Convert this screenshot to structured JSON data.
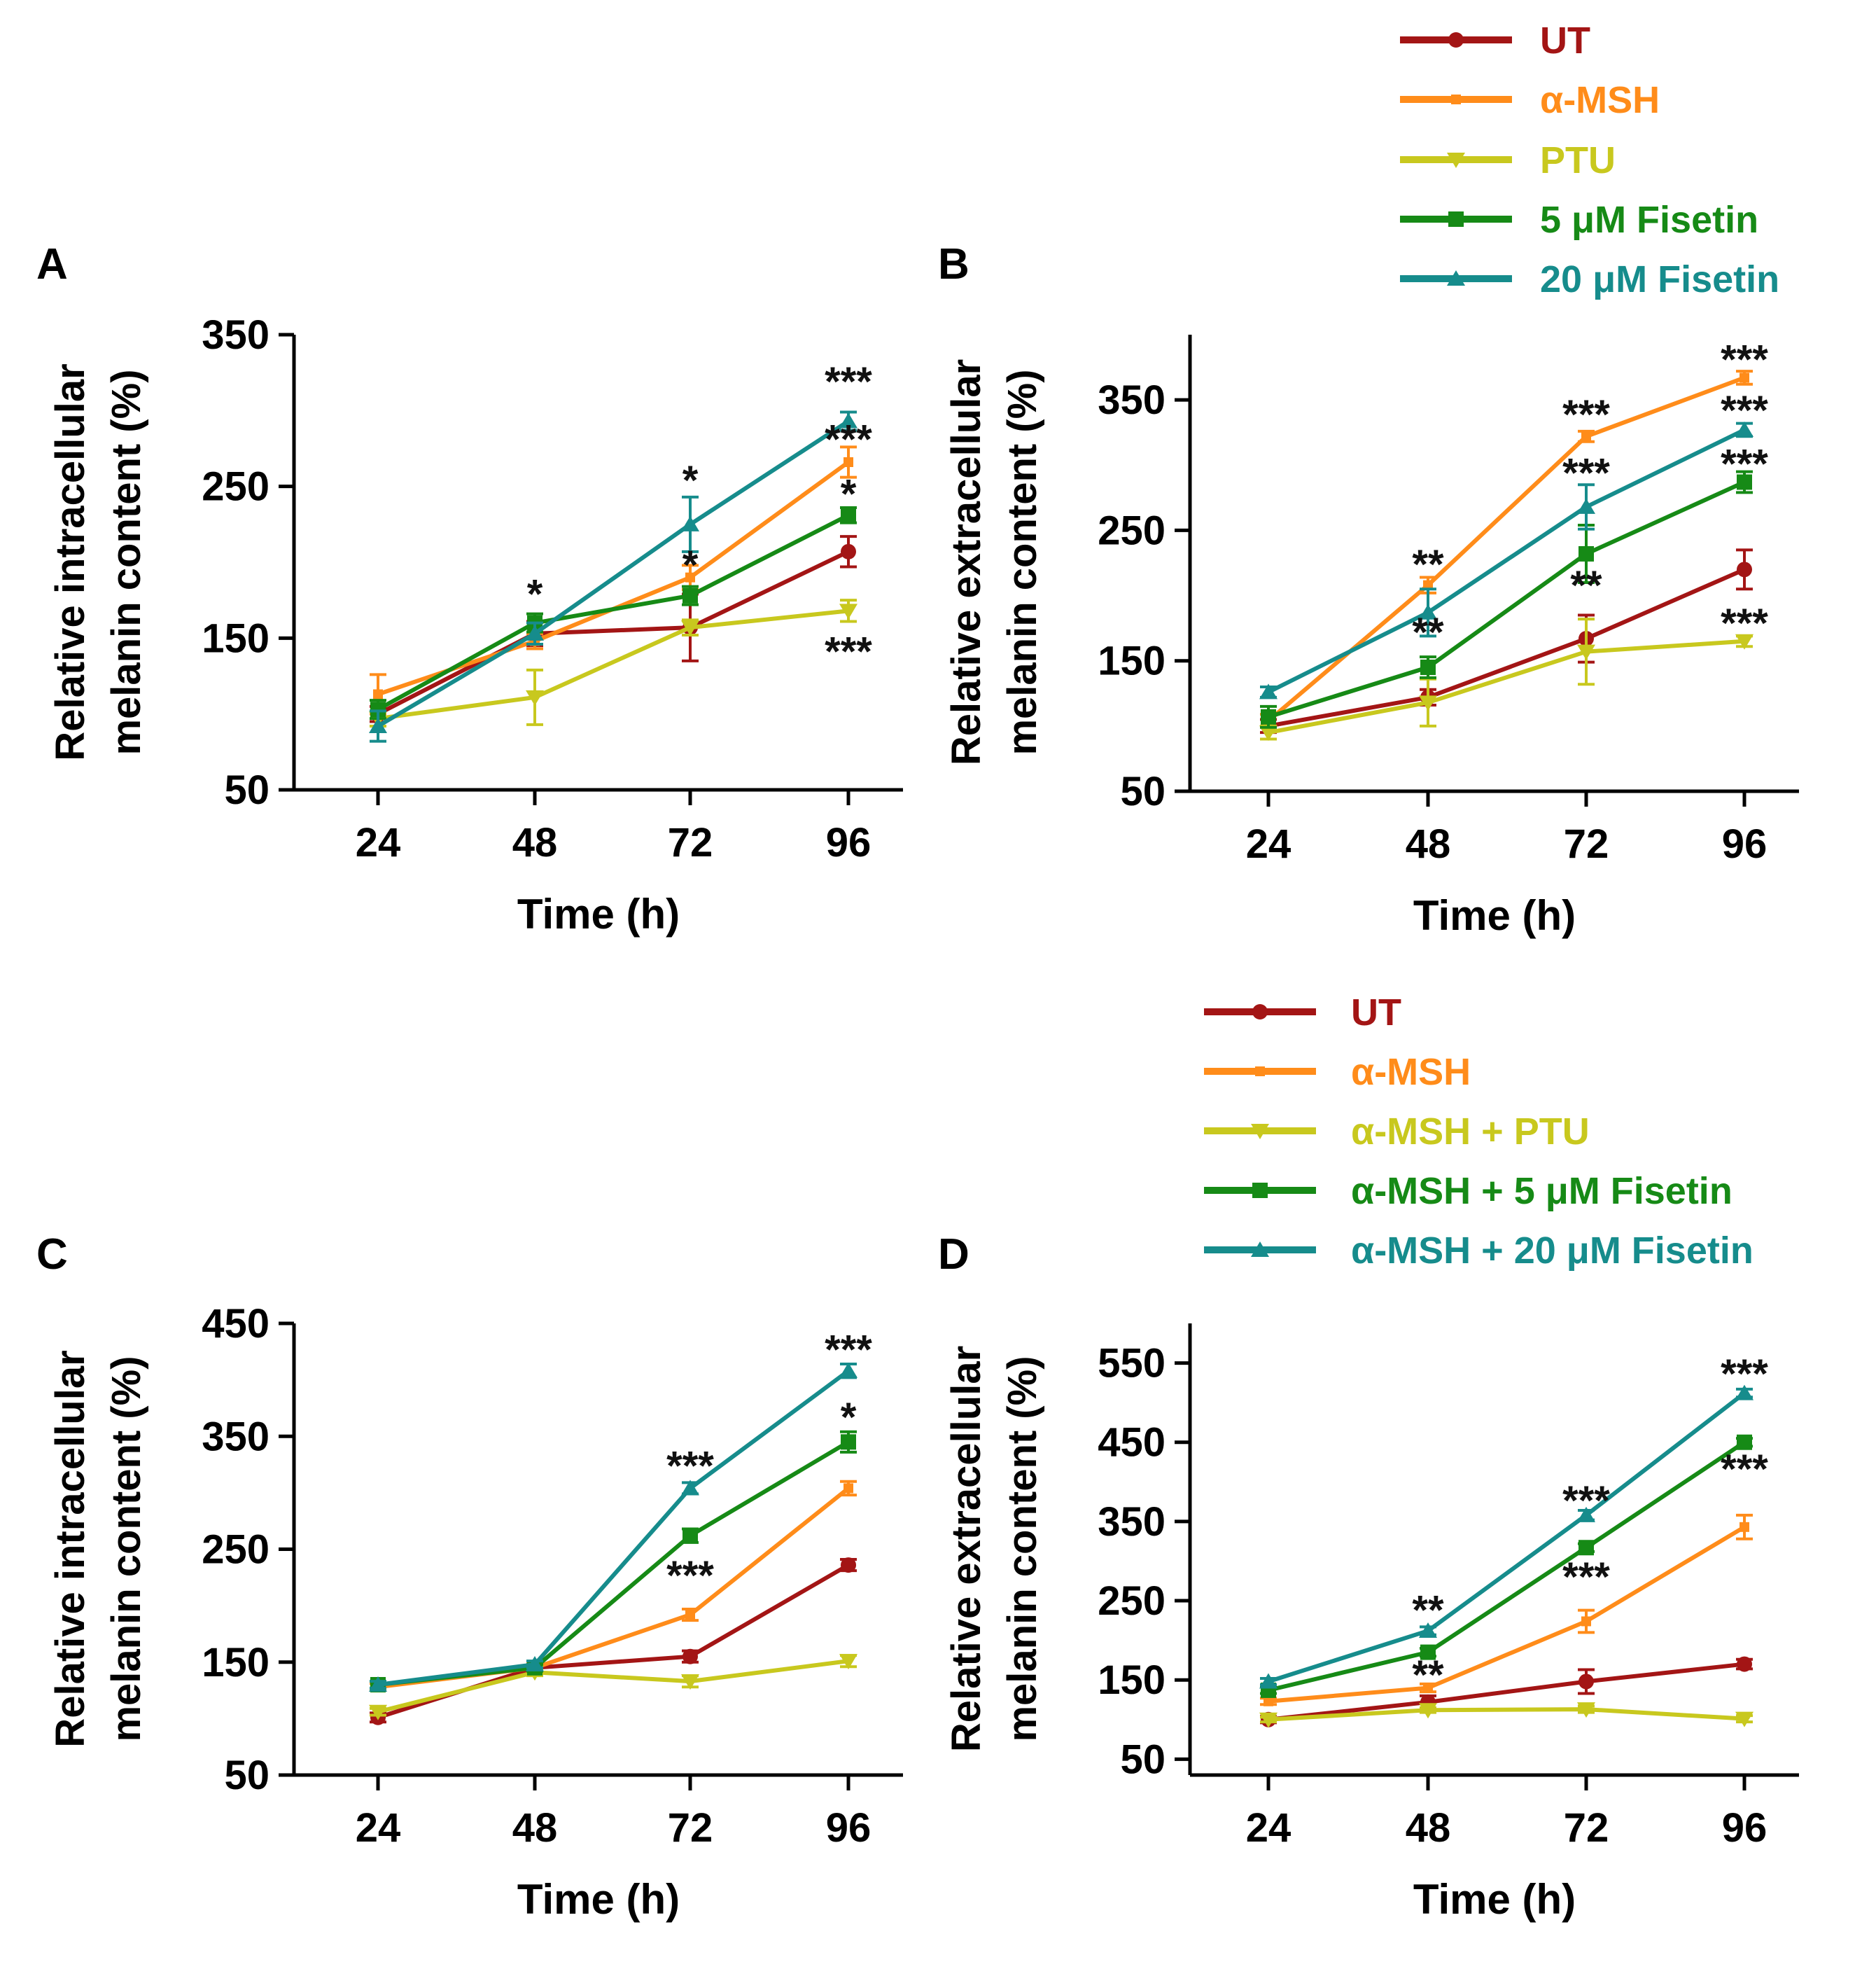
{
  "figure": {
    "legend_top": [
      {
        "name": "UT",
        "color": "#a31515",
        "marker": "circle"
      },
      {
        "name": "α-MSH",
        "color": "#ff8c1a",
        "marker": "small-square"
      },
      {
        "name": "PTU",
        "color": "#c8c81e",
        "marker": "triangle-down"
      },
      {
        "name": "5 μM Fisetin",
        "color": "#168a16",
        "marker": "square"
      },
      {
        "name": "20 μM Fisetin",
        "color": "#168c8c",
        "marker": "triangle-up"
      }
    ],
    "legend_bottom": [
      {
        "name": "UT",
        "color": "#a31515",
        "marker": "circle"
      },
      {
        "name": "α-MSH",
        "color": "#ff8c1a",
        "marker": "small-square"
      },
      {
        "name": "α-MSH + PTU",
        "color": "#c8c81e",
        "marker": "triangle-down"
      },
      {
        "name": "α-MSH + 5 μM Fisetin",
        "color": "#168a16",
        "marker": "square"
      },
      {
        "name": "α-MSH + 20 μM Fisetin",
        "color": "#168c8c",
        "marker": "triangle-up"
      }
    ]
  },
  "chart_data": [
    {
      "panel": "A",
      "type": "line",
      "xlabel": "Time (h)",
      "ylabel": [
        "Relative intracellular",
        "melanin content (%)"
      ],
      "categories": [
        "24",
        "48",
        "72",
        "96"
      ],
      "ylim": [
        50,
        350
      ],
      "yticks": [
        50,
        150,
        250,
        350
      ],
      "legend": "top",
      "series": [
        {
          "name": "UT",
          "values": [
            100,
            153,
            157,
            207
          ],
          "errors": [
            5,
            8,
            22,
            10
          ]
        },
        {
          "name": "α-MSH",
          "values": [
            113,
            148,
            190,
            266
          ],
          "errors": [
            13,
            5,
            8,
            10
          ]
        },
        {
          "name": "PTU",
          "values": [
            97,
            111,
            157,
            168
          ],
          "errors": [
            5,
            18,
            5,
            7
          ]
        },
        {
          "name": "5 μM Fisetin",
          "values": [
            103,
            160,
            178,
            231
          ],
          "errors": [
            6,
            6,
            6,
            5
          ]
        },
        {
          "name": "20 μM Fisetin",
          "values": [
            92,
            153,
            225,
            293
          ],
          "errors": [
            10,
            7,
            18,
            6
          ]
        }
      ],
      "annotations": [
        {
          "text": "*",
          "x": "48",
          "y": 180
        },
        {
          "text": "*",
          "x": "72",
          "y": 255
        },
        {
          "text": "*",
          "x": "72",
          "y": 199
        },
        {
          "text": "***",
          "x": "96",
          "y": 320
        },
        {
          "text": "***",
          "x": "96",
          "y": 282
        },
        {
          "text": "*",
          "x": "96",
          "y": 246
        },
        {
          "text": "***",
          "x": "96",
          "y": 142
        }
      ]
    },
    {
      "panel": "B",
      "type": "line",
      "xlabel": "Time (h)",
      "ylabel": [
        "Relative extracellular",
        "melanin content (%)"
      ],
      "categories": [
        "24",
        "48",
        "72",
        "96"
      ],
      "ylim": [
        50,
        400
      ],
      "yticks": [
        50,
        150,
        250,
        350
      ],
      "legend": "top",
      "series": [
        {
          "name": "UT",
          "values": [
            100,
            122,
            167,
            220
          ],
          "errors": [
            5,
            6,
            18,
            15
          ]
        },
        {
          "name": "α-MSH",
          "values": [
            104,
            208,
            322,
            367
          ],
          "errors": [
            5,
            6,
            4,
            5
          ]
        },
        {
          "name": "PTU",
          "values": [
            95,
            118,
            157,
            165
          ],
          "errors": [
            5,
            18,
            25,
            4
          ]
        },
        {
          "name": "5 μM Fisetin",
          "values": [
            107,
            145,
            232,
            287
          ],
          "errors": [
            8,
            8,
            22,
            8
          ]
        },
        {
          "name": "20 μM Fisetin",
          "values": [
            126,
            187,
            268,
            327
          ],
          "errors": [
            4,
            18,
            17,
            5
          ]
        }
      ],
      "annotations": [
        {
          "text": "**",
          "x": "48",
          "y": 225
        },
        {
          "text": "**",
          "x": "48",
          "y": 173
        },
        {
          "text": "***",
          "x": "72",
          "y": 340
        },
        {
          "text": "***",
          "x": "72",
          "y": 295
        },
        {
          "text": "**",
          "x": "72",
          "y": 209
        },
        {
          "text": "***",
          "x": "96",
          "y": 382
        },
        {
          "text": "***",
          "x": "96",
          "y": 343
        },
        {
          "text": "***",
          "x": "96",
          "y": 302
        },
        {
          "text": "***",
          "x": "96",
          "y": 180
        }
      ]
    },
    {
      "panel": "C",
      "type": "line",
      "xlabel": "Time (h)",
      "ylabel": [
        "Relative intracellular",
        "melanin content (%)"
      ],
      "categories": [
        "24",
        "48",
        "72",
        "96"
      ],
      "ylim": [
        50,
        450
      ],
      "yticks": [
        50,
        150,
        250,
        350,
        450
      ],
      "legend": "bottom",
      "series": [
        {
          "name": "UT",
          "values": [
            101,
            145,
            155,
            236
          ],
          "errors": [
            4,
            4,
            5,
            5
          ]
        },
        {
          "name": "α-MSH",
          "values": [
            128,
            145,
            192,
            304
          ],
          "errors": [
            3,
            4,
            5,
            6
          ]
        },
        {
          "name": "α-MSH + PTU",
          "values": [
            106,
            141,
            133,
            151
          ],
          "errors": [
            3,
            3,
            5,
            5
          ]
        },
        {
          "name": "α-MSH + 5 μM Fisetin",
          "values": [
            130,
            145,
            262,
            345
          ],
          "errors": [
            3,
            3,
            6,
            9
          ]
        },
        {
          "name": "α-MSH + 20 μM Fisetin",
          "values": [
            130,
            148,
            304,
            408
          ],
          "errors": [
            3,
            3,
            5,
            6
          ]
        }
      ],
      "annotations": [
        {
          "text": "***",
          "x": "72",
          "y": 325
        },
        {
          "text": "***",
          "x": "72",
          "y": 228
        },
        {
          "text": "***",
          "x": "96",
          "y": 428
        },
        {
          "text": "*",
          "x": "96",
          "y": 368
        }
      ]
    },
    {
      "panel": "D",
      "type": "line",
      "xlabel": "Time (h)",
      "ylabel": [
        "Relative extracellular",
        "melanin content (%)"
      ],
      "categories": [
        "24",
        "48",
        "72",
        "96"
      ],
      "ylim": [
        30,
        600
      ],
      "yticks": [
        50,
        150,
        250,
        350,
        450,
        550
      ],
      "legend": "bottom",
      "series": [
        {
          "name": "UT",
          "values": [
            100,
            122,
            148,
            170
          ],
          "errors": [
            4,
            8,
            15,
            6
          ]
        },
        {
          "name": "α-MSH",
          "values": [
            123,
            140,
            224,
            343
          ],
          "errors": [
            4,
            5,
            14,
            15
          ]
        },
        {
          "name": "α-MSH + PTU",
          "values": [
            100,
            112,
            113,
            101
          ],
          "errors": [
            3,
            3,
            4,
            4
          ]
        },
        {
          "name": "α-MSH + 5 μM Fisetin",
          "values": [
            137,
            185,
            317,
            450
          ],
          "errors": [
            4,
            5,
            5,
            5
          ]
        },
        {
          "name": "α-MSH + 20 μM Fisetin",
          "values": [
            148,
            212,
            358,
            512
          ],
          "errors": [
            4,
            5,
            6,
            5
          ]
        }
      ],
      "annotations": [
        {
          "text": "**",
          "x": "48",
          "y": 240
        },
        {
          "text": "**",
          "x": "48",
          "y": 158
        },
        {
          "text": "***",
          "x": "72",
          "y": 378
        },
        {
          "text": "***",
          "x": "72",
          "y": 282
        },
        {
          "text": "***",
          "x": "96",
          "y": 538
        },
        {
          "text": "***",
          "x": "96",
          "y": 418
        }
      ]
    }
  ]
}
